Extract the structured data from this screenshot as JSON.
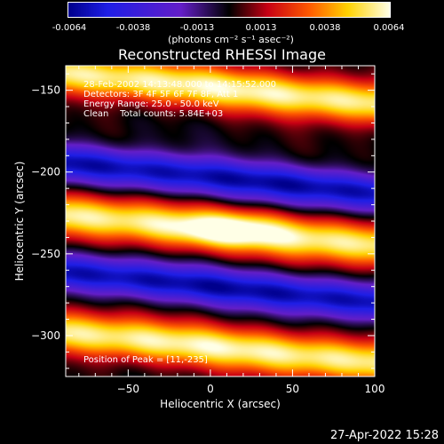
{
  "colorbar": {
    "tick_labels": [
      "-0.0064",
      "-0.0038",
      "-0.0013",
      "0.0013",
      "0.0038",
      "0.0064"
    ],
    "units": "(photons cm⁻² s⁻¹ asec⁻²)"
  },
  "chart_data": {
    "type": "heatmap",
    "title": "Reconstructed RHESSI Image",
    "xlabel": "Heliocentric X (arcsec)",
    "ylabel": "Heliocentric Y (arcsec)",
    "xlim": [
      -88,
      100
    ],
    "ylim": [
      -325,
      -135
    ],
    "x_ticks": [
      -50,
      0,
      50,
      100
    ],
    "y_ticks": [
      -150,
      -200,
      -250,
      -300
    ],
    "colormap": "RHESSI color table (blue-purple-red-orange-yellow-white)",
    "value_range": [
      -0.0064,
      0.0064
    ],
    "band_slope_arcsec_per_arcsec": -0.1,
    "bands": [
      {
        "kind": "bright",
        "y_at_x0": -148
      },
      {
        "kind": "dark",
        "y_at_x0": -203
      },
      {
        "kind": "bright",
        "y_at_x0": -235
      },
      {
        "kind": "dark",
        "y_at_x0": -270
      },
      {
        "kind": "bright",
        "y_at_x0": -307
      }
    ],
    "peak_position": [
      11,
      -235
    ],
    "annotations": [
      "28-Feb-2002 14:13:48.000 to 14:15:52.000",
      "Detectors: 3F 4F 5F 6F 7F 8F, Att 1",
      "Energy Range: 25.0 - 50.0 keV",
      "Clean    Total counts: 5.84E+03",
      "Position of Peak = [11,-235]"
    ]
  },
  "footer": {
    "date": "27-Apr-2022 15:28"
  }
}
